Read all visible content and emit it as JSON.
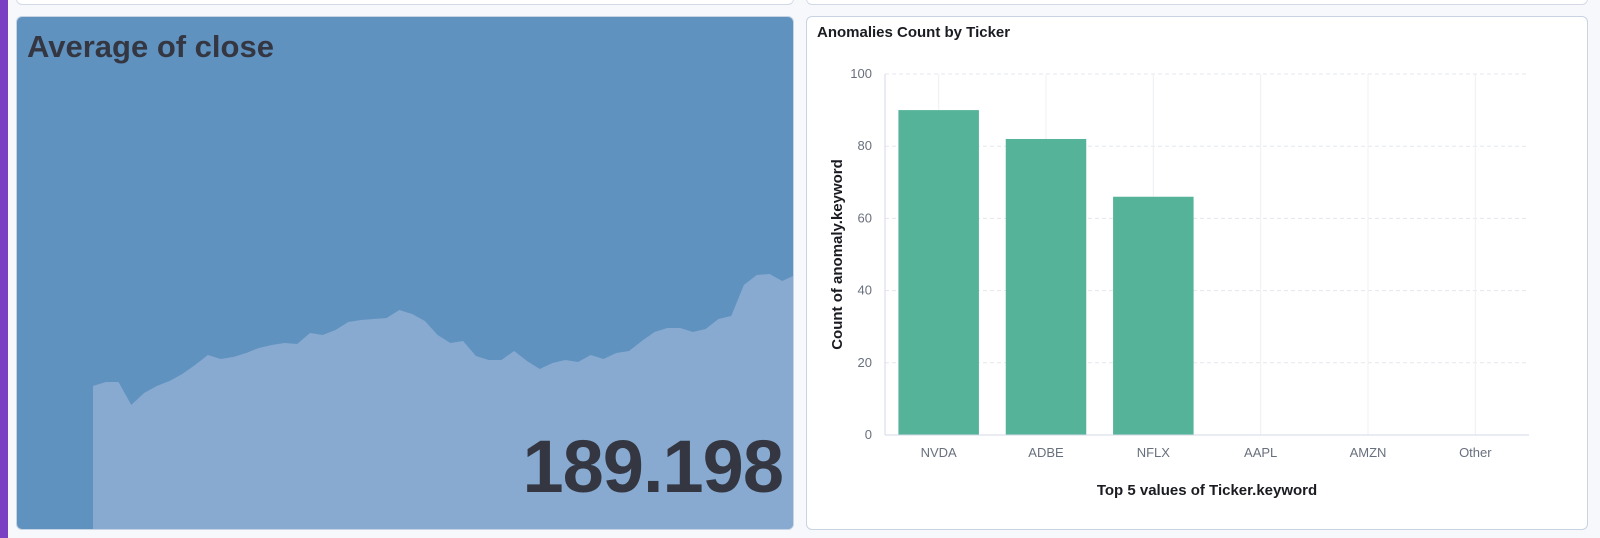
{
  "metric": {
    "title": "Average of close",
    "value": "189.198",
    "panel_color": "#6092c0",
    "sparkline_color": "#88aad0",
    "sparkline_values": [
      145,
      149,
      149,
      126,
      138,
      145,
      150,
      157,
      166,
      176,
      172,
      174,
      178,
      183,
      186,
      188,
      187,
      198,
      196,
      201,
      209,
      211,
      212,
      213,
      221,
      217,
      210,
      196,
      188,
      190,
      175,
      171,
      171,
      180,
      170,
      162,
      168,
      171,
      169,
      176,
      172,
      178,
      180,
      190,
      199,
      203,
      203,
      199,
      202,
      212,
      215,
      246,
      256,
      257,
      250,
      256
    ]
  },
  "chart_data": {
    "type": "bar",
    "title": "Anomalies Count by Ticker",
    "categories": [
      "NVDA",
      "ADBE",
      "NFLX",
      "AAPL",
      "AMZN",
      "Other"
    ],
    "values": [
      90,
      82,
      66,
      0,
      0,
      0
    ],
    "xlabel": "Top 5 values of Ticker.keyword",
    "ylabel": "Count of anomaly.keyword",
    "ylim": [
      0,
      100
    ],
    "yticks": [
      0,
      20,
      40,
      60,
      80,
      100
    ],
    "bar_color": "#54b399",
    "grid": true
  }
}
